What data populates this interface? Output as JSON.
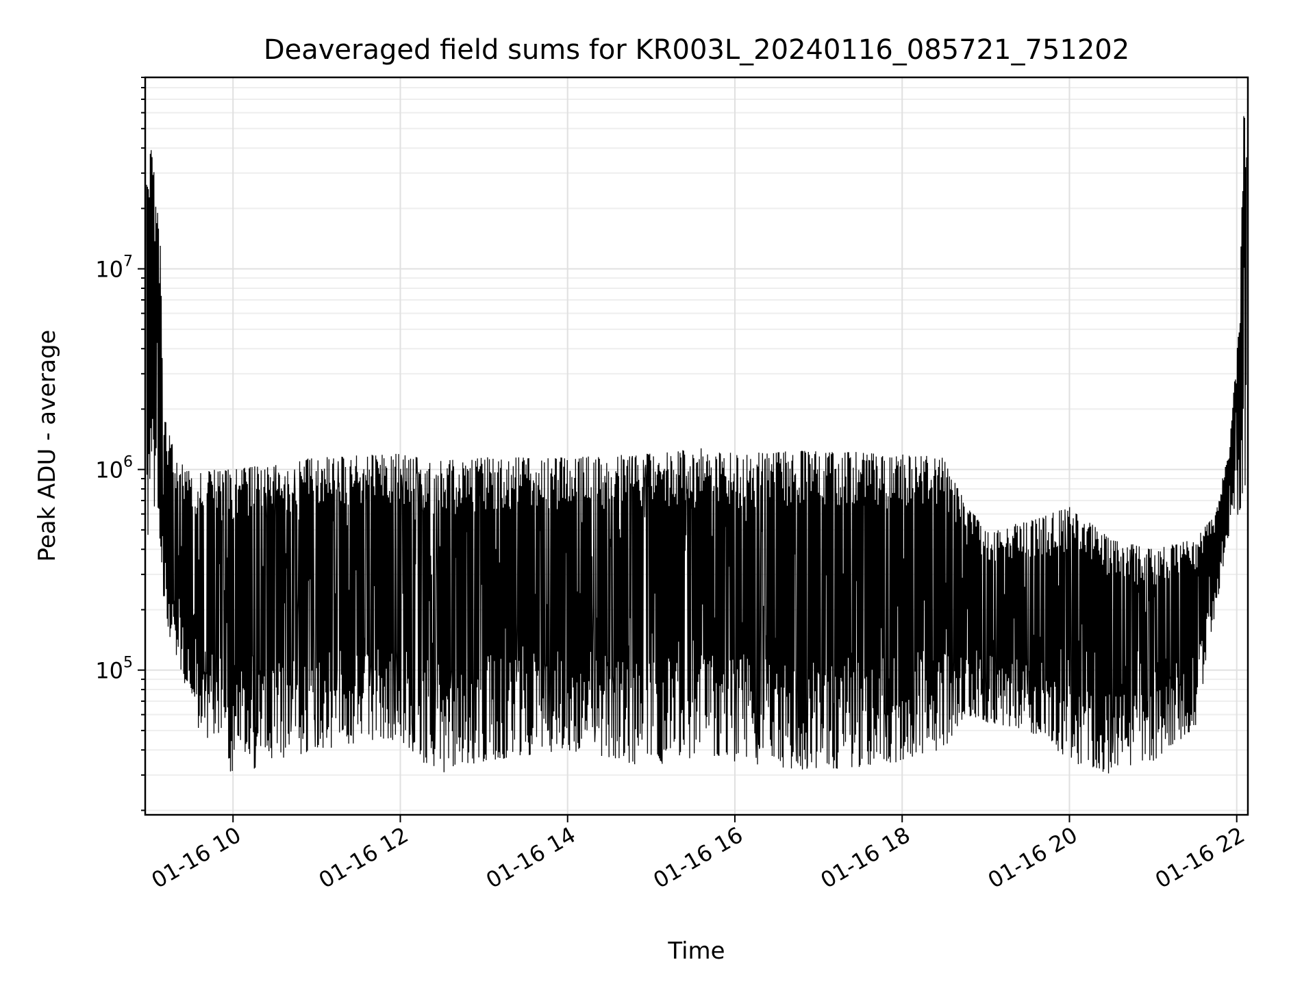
{
  "chart_data": {
    "type": "line",
    "title": "Deaveraged field sums for KR003L_20240116_085721_751202",
    "xlabel": "Time",
    "ylabel": "Peak ADU - average",
    "y_scale": "log",
    "ylim": [
      19000,
      90000000
    ],
    "xlim": [
      "2024-01-16 08:57",
      "2024-01-16 22:08"
    ],
    "grid": true,
    "x_ticks": [
      {
        "value": "2024-01-16 10:00",
        "label": "01-16 10"
      },
      {
        "value": "2024-01-16 12:00",
        "label": "01-16 12"
      },
      {
        "value": "2024-01-16 14:00",
        "label": "01-16 14"
      },
      {
        "value": "2024-01-16 16:00",
        "label": "01-16 16"
      },
      {
        "value": "2024-01-16 18:00",
        "label": "01-16 18"
      },
      {
        "value": "2024-01-16 20:00",
        "label": "01-16 20"
      },
      {
        "value": "2024-01-16 22:00",
        "label": "01-16 22"
      }
    ],
    "y_ticks": [
      {
        "value": 100000,
        "base": "10",
        "exp": "5"
      },
      {
        "value": 1000000,
        "base": "10",
        "exp": "6"
      },
      {
        "value": 10000000,
        "base": "10",
        "exp": "7"
      }
    ],
    "series": [
      {
        "color": "#000000",
        "envelope": [
          {
            "t": "2024-01-16 08:58",
            "upper": 40000000,
            "lower": 400000
          },
          {
            "t": "2024-01-16 09:02",
            "upper": 40000000,
            "lower": 450000
          },
          {
            "t": "2024-01-16 09:08",
            "upper": 13000000,
            "lower": 450000
          },
          {
            "t": "2024-01-16 09:10",
            "upper": 1900000,
            "lower": 180000
          },
          {
            "t": "2024-01-16 09:20",
            "upper": 1100000,
            "lower": 110000
          },
          {
            "t": "2024-01-16 09:35",
            "upper": 1000000,
            "lower": 50000
          },
          {
            "t": "2024-01-16 10:00",
            "upper": 1000000,
            "lower": 30000
          },
          {
            "t": "2024-01-16 11:00",
            "upper": 1150000,
            "lower": 40000
          },
          {
            "t": "2024-01-16 12:00",
            "upper": 1200000,
            "lower": 45000
          },
          {
            "t": "2024-01-16 12:25",
            "upper": 1100000,
            "lower": 30000
          },
          {
            "t": "2024-01-16 13:00",
            "upper": 1150000,
            "lower": 35000
          },
          {
            "t": "2024-01-16 14:00",
            "upper": 1150000,
            "lower": 40000
          },
          {
            "t": "2024-01-16 15:00",
            "upper": 1200000,
            "lower": 32000
          },
          {
            "t": "2024-01-16 15:40",
            "upper": 1300000,
            "lower": 38000
          },
          {
            "t": "2024-01-16 16:00",
            "upper": 1200000,
            "lower": 35000
          },
          {
            "t": "2024-01-16 17:00",
            "upper": 1250000,
            "lower": 31000
          },
          {
            "t": "2024-01-16 18:00",
            "upper": 1200000,
            "lower": 35000
          },
          {
            "t": "2024-01-16 18:30",
            "upper": 1150000,
            "lower": 40000
          },
          {
            "t": "2024-01-16 18:45",
            "upper": 700000,
            "lower": 60000
          },
          {
            "t": "2024-01-16 19:00",
            "upper": 500000,
            "lower": 55000
          },
          {
            "t": "2024-01-16 19:30",
            "upper": 550000,
            "lower": 50000
          },
          {
            "t": "2024-01-16 20:00",
            "upper": 650000,
            "lower": 35000
          },
          {
            "t": "2024-01-16 20:30",
            "upper": 450000,
            "lower": 30000
          },
          {
            "t": "2024-01-16 21:00",
            "upper": 400000,
            "lower": 35000
          },
          {
            "t": "2024-01-16 21:30",
            "upper": 450000,
            "lower": 50000
          },
          {
            "t": "2024-01-16 21:45",
            "upper": 600000,
            "lower": 200000
          },
          {
            "t": "2024-01-16 21:55",
            "upper": 1400000,
            "lower": 500000
          },
          {
            "t": "2024-01-16 22:02",
            "upper": 5500000,
            "lower": 600000
          },
          {
            "t": "2024-01-16 22:05",
            "upper": 65000000,
            "lower": 700000
          },
          {
            "t": "2024-01-16 22:07",
            "upper": 60000000,
            "lower": 600000
          }
        ]
      }
    ]
  }
}
